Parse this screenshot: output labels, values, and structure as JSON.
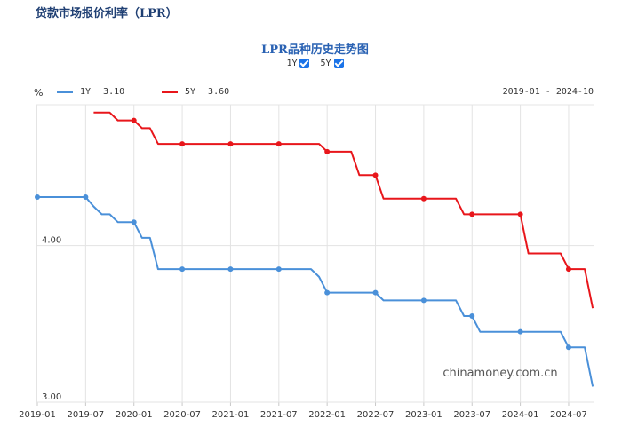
{
  "page": {
    "title": "贷款市场报价利率（LPR）"
  },
  "chart_data": {
    "type": "line",
    "title": "LPR品种历史走势图",
    "unit": "%",
    "date_range": "2019-01 - 2024-10",
    "toggles": [
      {
        "label": "1Y",
        "checked": true
      },
      {
        "label": "5Y",
        "checked": true
      }
    ],
    "legend": [
      {
        "name": "1Y",
        "value": "3.10",
        "color": "#4a90d9"
      },
      {
        "name": "5Y",
        "value": "3.60",
        "color": "#e8161b"
      }
    ],
    "y_tick_labels": [
      {
        "label": "4.00",
        "value": 4.0
      },
      {
        "label": "3.00",
        "value": 3.0
      }
    ],
    "ylim": [
      3.0,
      4.9
    ],
    "x_ticks": [
      "2019-01",
      "2019-07",
      "2020-01",
      "2020-07",
      "2021-01",
      "2021-07",
      "2022-01",
      "2022-07",
      "2023-01",
      "2023-07",
      "2024-01",
      "2024-07"
    ],
    "series": [
      {
        "name": "1Y",
        "color": "#4a90d9",
        "x": [
          "2019-01",
          "2019-02",
          "2019-03",
          "2019-04",
          "2019-05",
          "2019-06",
          "2019-07",
          "2019-08",
          "2019-09",
          "2019-10",
          "2019-11",
          "2019-12",
          "2020-01",
          "2020-02",
          "2020-03",
          "2020-04",
          "2020-05",
          "2020-06",
          "2020-07",
          "2020-08",
          "2020-09",
          "2020-10",
          "2020-11",
          "2020-12",
          "2021-01",
          "2021-02",
          "2021-03",
          "2021-04",
          "2021-05",
          "2021-06",
          "2021-07",
          "2021-08",
          "2021-09",
          "2021-10",
          "2021-11",
          "2021-12",
          "2022-01",
          "2022-02",
          "2022-03",
          "2022-04",
          "2022-05",
          "2022-06",
          "2022-07",
          "2022-08",
          "2022-09",
          "2022-10",
          "2022-11",
          "2022-12",
          "2023-01",
          "2023-02",
          "2023-03",
          "2023-04",
          "2023-05",
          "2023-06",
          "2023-07",
          "2023-08",
          "2023-09",
          "2023-10",
          "2023-11",
          "2023-12",
          "2024-01",
          "2024-02",
          "2024-03",
          "2024-04",
          "2024-05",
          "2024-06",
          "2024-07",
          "2024-08",
          "2024-09",
          "2024-10"
        ],
        "values": [
          4.31,
          4.31,
          4.31,
          4.31,
          4.31,
          4.31,
          4.31,
          4.25,
          4.2,
          4.2,
          4.15,
          4.15,
          4.15,
          4.05,
          4.05,
          3.85,
          3.85,
          3.85,
          3.85,
          3.85,
          3.85,
          3.85,
          3.85,
          3.85,
          3.85,
          3.85,
          3.85,
          3.85,
          3.85,
          3.85,
          3.85,
          3.85,
          3.85,
          3.85,
          3.85,
          3.8,
          3.7,
          3.7,
          3.7,
          3.7,
          3.7,
          3.7,
          3.7,
          3.65,
          3.65,
          3.65,
          3.65,
          3.65,
          3.65,
          3.65,
          3.65,
          3.65,
          3.65,
          3.55,
          3.55,
          3.45,
          3.45,
          3.45,
          3.45,
          3.45,
          3.45,
          3.45,
          3.45,
          3.45,
          3.45,
          3.45,
          3.35,
          3.35,
          3.35,
          3.1
        ],
        "markers": [
          "2019-01",
          "2019-07",
          "2020-01",
          "2020-07",
          "2021-01",
          "2021-07",
          "2022-01",
          "2022-07",
          "2023-01",
          "2023-07",
          "2024-01",
          "2024-07"
        ]
      },
      {
        "name": "5Y",
        "color": "#e8161b",
        "x": [
          "2019-08",
          "2019-09",
          "2019-10",
          "2019-11",
          "2019-12",
          "2020-01",
          "2020-02",
          "2020-03",
          "2020-04",
          "2020-05",
          "2020-06",
          "2020-07",
          "2020-08",
          "2020-09",
          "2020-10",
          "2020-11",
          "2020-12",
          "2021-01",
          "2021-02",
          "2021-03",
          "2021-04",
          "2021-05",
          "2021-06",
          "2021-07",
          "2021-08",
          "2021-09",
          "2021-10",
          "2021-11",
          "2021-12",
          "2022-01",
          "2022-02",
          "2022-03",
          "2022-04",
          "2022-05",
          "2022-06",
          "2022-07",
          "2022-08",
          "2022-09",
          "2022-10",
          "2022-11",
          "2022-12",
          "2023-01",
          "2023-02",
          "2023-03",
          "2023-04",
          "2023-05",
          "2023-06",
          "2023-07",
          "2023-08",
          "2023-09",
          "2023-10",
          "2023-11",
          "2023-12",
          "2024-01",
          "2024-02",
          "2024-03",
          "2024-04",
          "2024-05",
          "2024-06",
          "2024-07",
          "2024-08",
          "2024-09",
          "2024-10"
        ],
        "values": [
          4.85,
          4.85,
          4.85,
          4.8,
          4.8,
          4.8,
          4.75,
          4.75,
          4.65,
          4.65,
          4.65,
          4.65,
          4.65,
          4.65,
          4.65,
          4.65,
          4.65,
          4.65,
          4.65,
          4.65,
          4.65,
          4.65,
          4.65,
          4.65,
          4.65,
          4.65,
          4.65,
          4.65,
          4.65,
          4.6,
          4.6,
          4.6,
          4.6,
          4.45,
          4.45,
          4.45,
          4.3,
          4.3,
          4.3,
          4.3,
          4.3,
          4.3,
          4.3,
          4.3,
          4.3,
          4.3,
          4.2,
          4.2,
          4.2,
          4.2,
          4.2,
          4.2,
          4.2,
          4.2,
          3.95,
          3.95,
          3.95,
          3.95,
          3.95,
          3.85,
          3.85,
          3.85,
          3.6
        ],
        "markers": [
          "2020-01",
          "2020-07",
          "2021-01",
          "2021-07",
          "2022-01",
          "2022-07",
          "2023-01",
          "2023-07",
          "2024-01",
          "2024-07"
        ]
      }
    ],
    "grid": true,
    "watermark": "chinamoney.com.cn"
  }
}
